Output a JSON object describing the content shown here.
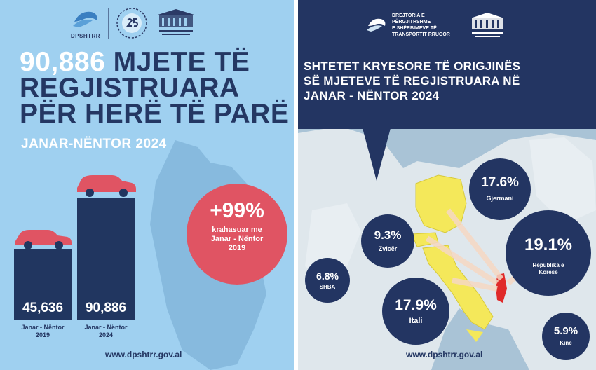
{
  "left_panel": {
    "logo_text": "DPSHTRR",
    "headline_number": "90,886",
    "headline_rest": " MJETE TË REGJISTRUARA PËR HERË TË PARË",
    "subheadline": "JANAR-NËNTOR 2024",
    "bars": [
      {
        "value": "45,636",
        "label_line1": "Janar - Nëntor",
        "label_line2": "2019",
        "count": 45636
      },
      {
        "value": "90,886",
        "label_line1": "Janar - Nëntor",
        "label_line2": "2024",
        "count": 90886
      }
    ],
    "change": {
      "value": "+99%",
      "desc_line1": "krahasuar me",
      "desc_line2": "Janar - Nëntor",
      "desc_line3": "2019"
    },
    "url": "www.dpshtrr.gov.al"
  },
  "right_panel": {
    "logo_text_line1": "DREJTORIA E PËRGJITHSHME",
    "logo_text_line2": "E SHËRBIMEVE TË",
    "logo_text_line3": "TRANSPORTIT RRUGOR",
    "title_line1": "SHTETET KRYESORE TË ORIGJINËS",
    "title_line2": "SË MJETEVE TË REGJISTRUARA NË",
    "title_line3": "JANAR - NËNTOR 2024",
    "countries": [
      {
        "percent": "17.6%",
        "name": "Gjermani",
        "share": 17.6
      },
      {
        "percent": "9.3%",
        "name": "Zvicër",
        "share": 9.3
      },
      {
        "percent": "19.1%",
        "name": "Republika e Koresë",
        "share": 19.1
      },
      {
        "percent": "6.8%",
        "name": "SHBA",
        "share": 6.8
      },
      {
        "percent": "17.9%",
        "name": "Itali",
        "share": 17.9
      },
      {
        "percent": "5.9%",
        "name": "Kinë",
        "share": 5.9
      }
    ],
    "url": "www.dpshtrr.gov.al"
  },
  "colors": {
    "navy": "#233562",
    "light_blue": "#9fd0f0",
    "accent_red": "#e05463",
    "highlight_yellow": "#f4e85a",
    "albania_red": "#e02a2a"
  }
}
